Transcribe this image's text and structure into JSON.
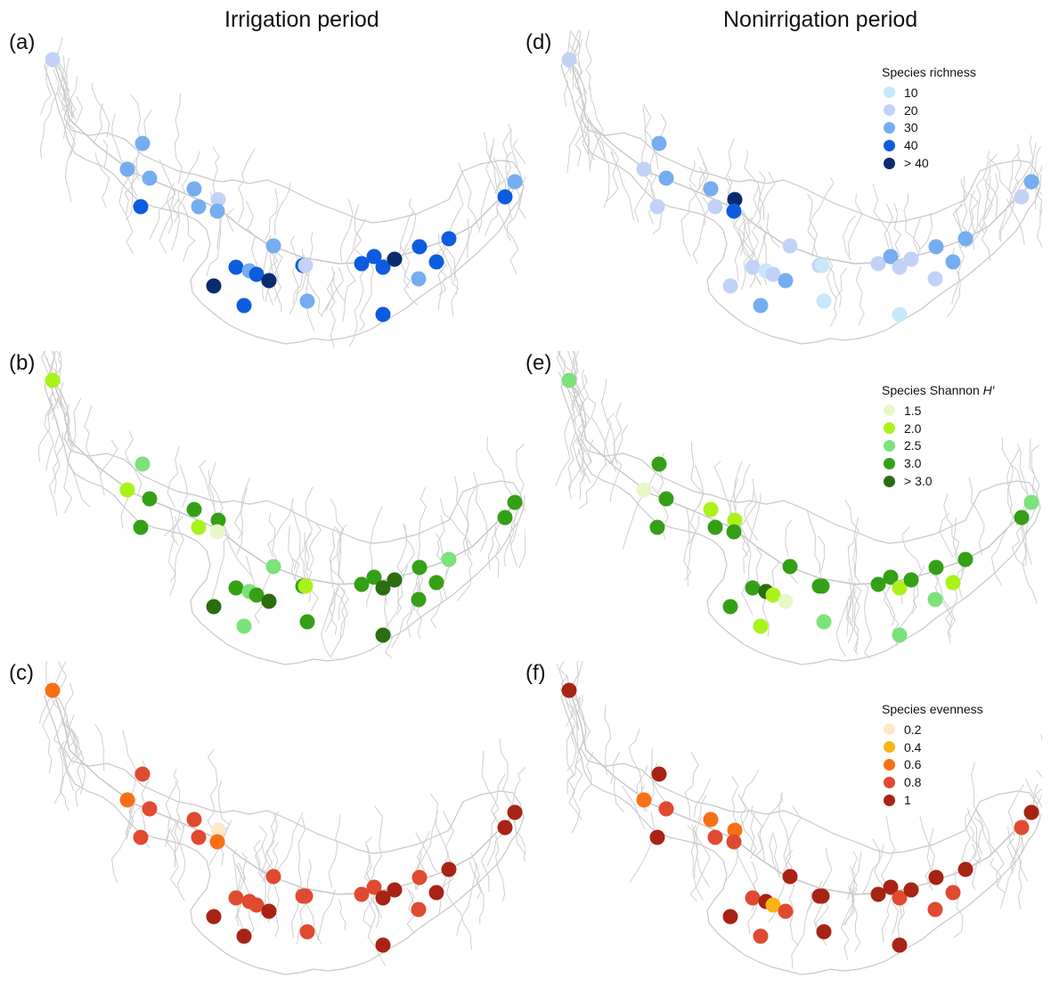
{
  "columns": {
    "left_title": "Irrigation period",
    "right_title": "Nonirrigation period"
  },
  "panels": [
    {
      "label": "(a)",
      "metric": "richness",
      "period": "irrigation"
    },
    {
      "label": "(b)",
      "metric": "shannon",
      "period": "irrigation"
    },
    {
      "label": "(c)",
      "metric": "evenness",
      "period": "irrigation"
    },
    {
      "label": "(d)",
      "metric": "richness",
      "period": "nonirrigation"
    },
    {
      "label": "(e)",
      "metric": "shannon",
      "period": "nonirrigation"
    },
    {
      "label": "(f)",
      "metric": "evenness",
      "period": "nonirrigation"
    }
  ],
  "legends": {
    "richness": {
      "title": "Species richness",
      "title_suffix": "",
      "items": [
        {
          "label": "10",
          "color": "#c8e8fb"
        },
        {
          "label": "20",
          "color": "#c2d2f6"
        },
        {
          "label": "30",
          "color": "#75adf0"
        },
        {
          "label": "40",
          "color": "#0d5ce0"
        },
        {
          "label": "> 40",
          "color": "#0a2b6e"
        }
      ]
    },
    "shannon": {
      "title": "Species Shannon ",
      "title_suffix": "H′",
      "items": [
        {
          "label": "1.5",
          "color": "#e6f8c6"
        },
        {
          "label": "2.0",
          "color": "#aaf21a"
        },
        {
          "label": "2.5",
          "color": "#7ce27a"
        },
        {
          "label": "3.0",
          "color": "#34a016"
        },
        {
          "label": "> 3.0",
          "color": "#2a6e10"
        }
      ]
    },
    "evenness": {
      "title": "Species evenness",
      "title_suffix": "",
      "items": [
        {
          "label": "0.2",
          "color": "#fde8c8"
        },
        {
          "label": "0.4",
          "color": "#fbb416"
        },
        {
          "label": "0.6",
          "color": "#f96f16"
        },
        {
          "label": "0.8",
          "color": "#e04a30"
        },
        {
          "label": "1",
          "color": "#a82314"
        }
      ]
    }
  },
  "map_data": {
    "richness": {
      "irrigation": [
        2,
        3,
        3,
        3,
        4,
        3,
        3,
        2,
        3,
        3,
        4,
        3,
        4,
        5,
        5,
        4,
        4,
        3,
        2,
        4,
        4,
        4,
        5,
        4,
        4,
        3,
        4,
        4,
        3,
        4
      ],
      "nonirrigation": [
        2,
        3,
        2,
        3,
        2,
        3,
        2,
        5,
        4,
        2,
        2,
        1,
        2,
        3,
        2,
        2,
        3,
        1,
        1,
        2,
        3,
        2,
        2,
        3,
        3,
        2,
        1,
        2,
        3,
        3
      ]
    },
    "shannon": {
      "irrigation": [
        2,
        3,
        2,
        4,
        4,
        4,
        2,
        4,
        1,
        3,
        4,
        3,
        4,
        5,
        5,
        4,
        3,
        4,
        2,
        4,
        4,
        5,
        5,
        4,
        3,
        4,
        5,
        4,
        4,
        4
      ],
      "nonirrigation": [
        3,
        4,
        1,
        4,
        4,
        2,
        4,
        2,
        4,
        4,
        4,
        5,
        2,
        1,
        4,
        4,
        2,
        3,
        4,
        4,
        4,
        2,
        4,
        4,
        4,
        3,
        3,
        4,
        3,
        2
      ]
    },
    "evenness": {
      "irrigation": [
        3,
        4,
        3,
        4,
        4,
        4,
        4,
        1,
        3,
        4,
        4,
        4,
        4,
        5,
        5,
        4,
        5,
        4,
        4,
        4,
        4,
        5,
        5,
        4,
        5,
        4,
        5,
        5,
        5,
        5
      ],
      "nonirrigation": [
        5,
        5,
        3,
        4,
        5,
        3,
        4,
        3,
        4,
        5,
        4,
        5,
        2,
        4,
        5,
        5,
        4,
        5,
        5,
        5,
        5,
        4,
        5,
        5,
        5,
        4,
        5,
        4,
        5,
        4
      ]
    }
  }
}
